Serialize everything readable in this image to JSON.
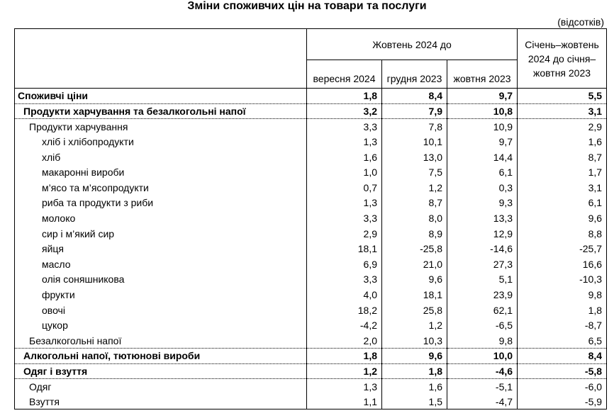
{
  "title": "Зміни споживчих цін на товари та послуги",
  "units": "(відсотків)",
  "header": {
    "group": "Жовтень 2024 до",
    "cols": [
      "вересня 2024",
      "грудня 2023",
      "жовтня 2023"
    ],
    "last": "Січень–жовтень 2024 до січня–жовтня 2023"
  },
  "rows": [
    {
      "name": "Споживчі ціни",
      "v": [
        "1,8",
        "8,4",
        "9,7",
        "5,5"
      ]
    },
    {
      "name": "Продукти харчування та безалкогольні напої",
      "v": [
        "3,2",
        "7,9",
        "10,8",
        "3,1"
      ]
    },
    {
      "name": "Продукти харчування",
      "v": [
        "3,3",
        "7,8",
        "10,9",
        "2,9"
      ]
    },
    {
      "name": "хліб і хлібопродукти",
      "v": [
        "1,3",
        "10,1",
        "9,7",
        "1,6"
      ]
    },
    {
      "name": "хліб",
      "v": [
        "1,6",
        "13,0",
        "14,4",
        "8,7"
      ]
    },
    {
      "name": "макаронні вироби",
      "v": [
        "1,0",
        "7,5",
        "6,1",
        "1,7"
      ]
    },
    {
      "name": "м’ясо та м’ясопродукти",
      "v": [
        "0,7",
        "1,2",
        "0,3",
        "3,1"
      ]
    },
    {
      "name": "риба та продукти з риби",
      "v": [
        "1,3",
        "8,7",
        "9,3",
        "6,1"
      ]
    },
    {
      "name": "молоко",
      "v": [
        "3,3",
        "8,0",
        "13,3",
        "9,6"
      ]
    },
    {
      "name": "сир і м’який сир",
      "v": [
        "2,9",
        "8,9",
        "12,9",
        "8,8"
      ]
    },
    {
      "name": "яйця",
      "v": [
        "18,1",
        "-25,8",
        "-14,6",
        "-25,7"
      ]
    },
    {
      "name": "масло",
      "v": [
        "6,9",
        "21,0",
        "27,3",
        "16,6"
      ]
    },
    {
      "name": "олія соняшникова",
      "v": [
        "3,3",
        "9,6",
        "5,1",
        "-10,3"
      ]
    },
    {
      "name": "фрукти",
      "v": [
        "4,0",
        "18,1",
        "23,9",
        "9,8"
      ]
    },
    {
      "name": "овочі",
      "v": [
        "18,2",
        "25,8",
        "62,1",
        "1,8"
      ]
    },
    {
      "name": "цукор",
      "v": [
        "-4,2",
        "1,2",
        "-6,5",
        "-8,7"
      ]
    },
    {
      "name": "Безалкогольні напої",
      "v": [
        "2,0",
        "10,3",
        "9,8",
        "6,5"
      ]
    },
    {
      "name": "Алкогольні напої, тютюнові вироби",
      "v": [
        "1,8",
        "9,6",
        "10,0",
        "8,4"
      ]
    },
    {
      "name": "Одяг і взуття",
      "v": [
        "1,2",
        "1,8",
        "-4,6",
        "-5,8"
      ]
    },
    {
      "name": "Одяг",
      "v": [
        "1,3",
        "1,6",
        "-5,1",
        "-6,0"
      ]
    },
    {
      "name": "Взуття",
      "v": [
        "1,1",
        "1,5",
        "-4,7",
        "-5,9"
      ]
    }
  ]
}
